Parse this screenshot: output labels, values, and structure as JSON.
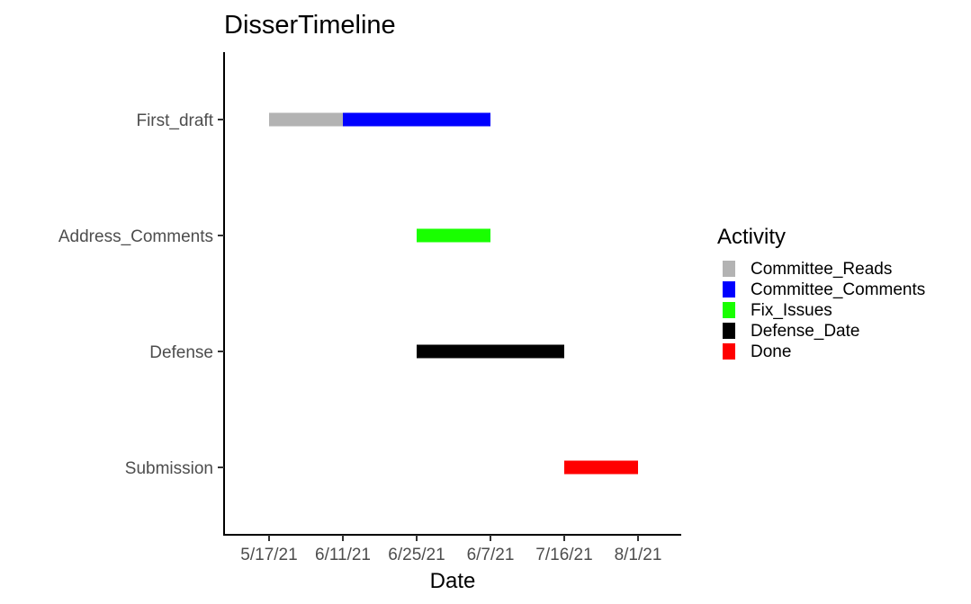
{
  "chart_data": {
    "type": "bar",
    "orientation": "horizontal",
    "title": "DisserTimeline",
    "xlabel": "Date",
    "ylabel": "",
    "grid": false,
    "legend_position": "right",
    "legend": {
      "title": "Activity",
      "entries": [
        {
          "name": "Committee_Reads",
          "color": "#b3b3b3"
        },
        {
          "name": "Committee_Comments",
          "color": "#0000ff"
        },
        {
          "name": "Fix_Issues",
          "color": "#19ff00"
        },
        {
          "name": "Defense_Date",
          "color": "#000000"
        },
        {
          "name": "Done",
          "color": "#ff0000"
        }
      ]
    },
    "x_ticks": [
      "5/17/21",
      "6/11/21",
      "6/25/21",
      "6/7/21",
      "7/16/21",
      "8/1/21"
    ],
    "x_range_ticks": [
      0.4,
      6.7
    ],
    "categories": [
      "First_draft",
      "Address_Comments",
      "Defense",
      "Submission"
    ],
    "segments": [
      {
        "category": "First_draft",
        "activity": "Committee_Reads",
        "start": "5/17/21",
        "end": "6/11/21"
      },
      {
        "category": "First_draft",
        "activity": "Committee_Comments",
        "start": "6/11/21",
        "end": "6/7/21"
      },
      {
        "category": "Address_Comments",
        "activity": "Fix_Issues",
        "start": "6/25/21",
        "end": "6/7/21"
      },
      {
        "category": "Defense",
        "activity": "Defense_Date",
        "start": "6/25/21",
        "end": "7/16/21"
      },
      {
        "category": "Submission",
        "activity": "Done",
        "start": "7/16/21",
        "end": "8/1/21"
      }
    ]
  }
}
